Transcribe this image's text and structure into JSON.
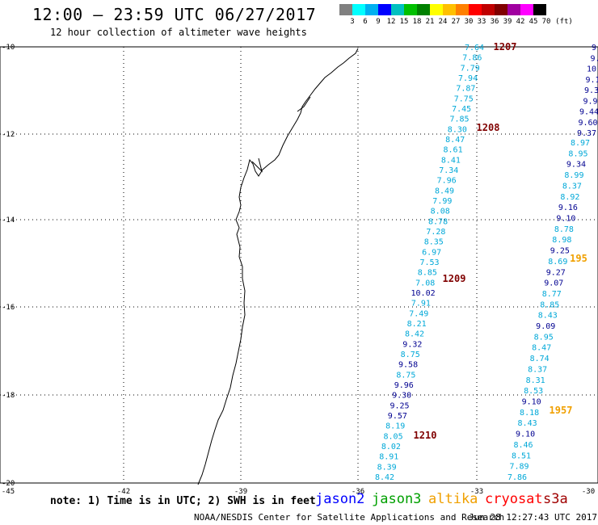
{
  "title": "12:00 — 23:59 UTC 06/27/2017",
  "subtitle": "12 hour collection of altimeter wave heights",
  "scale": {
    "colors": [
      "#808080",
      "#00ffff",
      "#00b0f0",
      "#0000ff",
      "#00c0c0",
      "#00c000",
      "#008000",
      "#ffff00",
      "#ffc000",
      "#ff8000",
      "#ff0000",
      "#c00000",
      "#800000",
      "#a000a0",
      "#ff00ff",
      "#000000"
    ],
    "labels": [
      "3",
      "6",
      "9",
      "12",
      "15",
      "18",
      "21",
      "24",
      "27",
      "30",
      "33",
      "36",
      "39",
      "42",
      "45",
      "70",
      "(ft)"
    ]
  },
  "axes": {
    "lat_labels": [
      "-10",
      "-12",
      "-14",
      "-16",
      "-18",
      "-20"
    ],
    "lon_labels": [
      "-45",
      "-42",
      "-39",
      "-36",
      "-33",
      "-30"
    ]
  },
  "passes": [
    {
      "label": "1207",
      "color": "#800000"
    },
    {
      "label": "1208",
      "color": "#800000"
    },
    {
      "label": "1209",
      "color": "#800000"
    },
    {
      "label": "1210",
      "color": "#800000"
    },
    {
      "label": "1957",
      "color": "#f0a000"
    },
    {
      "label": "195",
      "color": "#f0a000"
    }
  ],
  "track_a": {
    "color": "#00a8d8",
    "values": [
      "7.64",
      "7.86",
      "7.79",
      "7.94",
      "7.87",
      "7.75",
      "7.45",
      "7.85",
      "8.30",
      "8.47",
      "8.61",
      "8.41",
      "7.34",
      "7.96",
      "8.49",
      "7.99",
      "8.08",
      "8.78",
      "7.28",
      "8.35",
      "6.97",
      "7.53",
      "8.85",
      "7.08",
      "10.02",
      "7.91",
      "7.49",
      "8.21",
      "8.42",
      "9.32",
      "8.75",
      "9.58",
      "8.75",
      "9.96",
      "9.30",
      "9.25",
      "9.57",
      "8.19",
      "8.05",
      "8.02",
      "8.91",
      "8.39",
      "8.42"
    ]
  },
  "track_b": {
    "color": "#00a8d8",
    "values": [
      "8.97",
      "8.95",
      "9.34",
      "8.99",
      "8.37",
      "8.92",
      "9.16",
      "9.10",
      "8.78",
      "8.98",
      "9.25",
      "8.69",
      "9.27",
      "9.07",
      "8.77",
      "8.85",
      "8.43",
      "9.09",
      "8.95",
      "8.47",
      "8.74",
      "8.37",
      "8.31",
      "8.53",
      "9.10",
      "8.18",
      "8.43",
      "9.10",
      "8.46",
      "8.51",
      "7.89",
      "7.86"
    ]
  },
  "track_c": {
    "values": [
      "9.",
      "9.",
      "10.",
      "9.1",
      "9.3",
      "9.9",
      "9.44",
      "9.60",
      "9.37"
    ]
  },
  "footer": {
    "note": "note: 1) Time is in UTC; 2) SWH is in feet",
    "satellites": [
      {
        "name": "jason2",
        "color": "#0000ff"
      },
      {
        "name": "jason3",
        "color": "#00a000"
      },
      {
        "name": "altika",
        "color": "#f0a000"
      },
      {
        "name": "cryosat",
        "color": "#ff0000"
      },
      {
        "name": "s3a",
        "color": "#a00000"
      }
    ],
    "credit": "NOAA/NESDIS Center for Satellite Applications and Research",
    "timestamp": "Jun 28 12:27:43 UTC 2017"
  }
}
